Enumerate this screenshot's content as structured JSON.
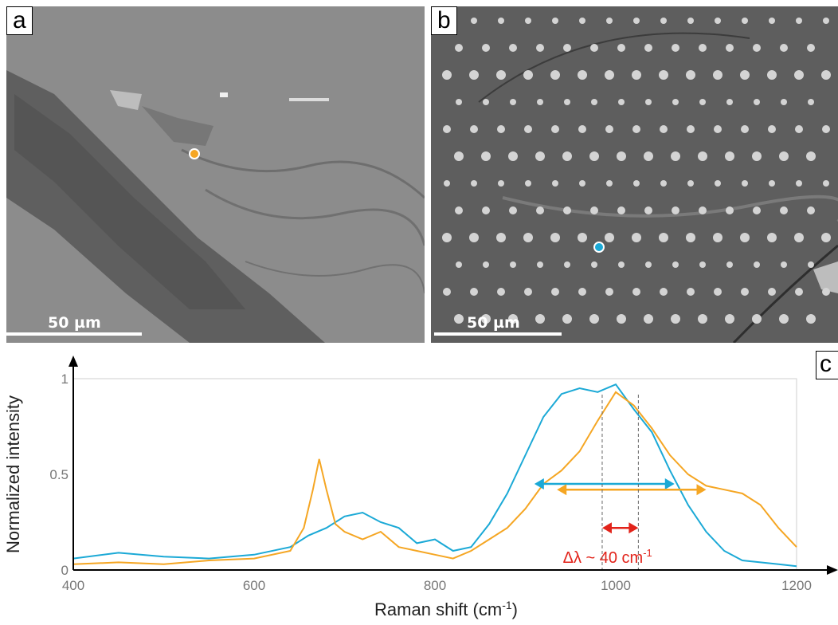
{
  "panels": {
    "a": {
      "letter": "a",
      "scale_label": "50 µm",
      "marker_color": "#F5A623"
    },
    "b": {
      "letter": "b",
      "scale_label": "50 µm",
      "marker_color": "#1BA9D6"
    },
    "c": {
      "letter": "c"
    }
  },
  "chart_data": {
    "type": "line",
    "xlabel": "Raman shift (cm-1)",
    "ylabel": "Normalized intensity",
    "xlim": [
      400,
      1200
    ],
    "ylim": [
      0,
      1
    ],
    "xticks": [
      400,
      600,
      800,
      1000,
      1200
    ],
    "yticks": [
      0,
      0.5,
      1
    ],
    "grid": false,
    "series": [
      {
        "color": "#1BA9D6",
        "x": [
          400,
          450,
          500,
          550,
          600,
          640,
          660,
          680,
          700,
          720,
          740,
          760,
          780,
          800,
          820,
          840,
          860,
          880,
          900,
          920,
          940,
          960,
          980,
          1000,
          1020,
          1040,
          1060,
          1080,
          1100,
          1120,
          1140,
          1160,
          1180,
          1200
        ],
        "y": [
          0.06,
          0.09,
          0.07,
          0.06,
          0.08,
          0.12,
          0.18,
          0.22,
          0.28,
          0.3,
          0.25,
          0.22,
          0.14,
          0.16,
          0.1,
          0.12,
          0.24,
          0.4,
          0.6,
          0.8,
          0.92,
          0.95,
          0.93,
          0.97,
          0.84,
          0.72,
          0.52,
          0.34,
          0.2,
          0.1,
          0.05,
          0.04,
          0.03,
          0.02
        ]
      },
      {
        "color": "#F5A623",
        "x": [
          400,
          450,
          500,
          550,
          600,
          640,
          655,
          665,
          672,
          680,
          690,
          700,
          720,
          740,
          760,
          780,
          800,
          820,
          840,
          860,
          880,
          900,
          920,
          940,
          960,
          980,
          1000,
          1020,
          1040,
          1060,
          1080,
          1100,
          1120,
          1140,
          1160,
          1180,
          1200
        ],
        "y": [
          0.03,
          0.04,
          0.03,
          0.05,
          0.06,
          0.1,
          0.22,
          0.42,
          0.58,
          0.42,
          0.24,
          0.2,
          0.16,
          0.2,
          0.12,
          0.1,
          0.08,
          0.06,
          0.1,
          0.16,
          0.22,
          0.32,
          0.45,
          0.52,
          0.62,
          0.78,
          0.93,
          0.86,
          0.74,
          0.6,
          0.5,
          0.44,
          0.42,
          0.4,
          0.34,
          0.22,
          0.12
        ]
      }
    ],
    "annotations": [
      {
        "kind": "fwhm-arrow",
        "color": "#1BA9D6",
        "x_start": 910,
        "x_end": 1065,
        "y": 0.45
      },
      {
        "kind": "fwhm-arrow",
        "color": "#F5A623",
        "x_start": 935,
        "x_end": 1100,
        "y": 0.42
      },
      {
        "kind": "shift-arrow",
        "color": "#E2231A",
        "x_start": 985,
        "x_end": 1025,
        "y": 0.22,
        "label": "Δλ ~ 40 cm-1"
      },
      {
        "kind": "dashed-line",
        "x": 985
      },
      {
        "kind": "dashed-line",
        "x": 1025
      }
    ]
  }
}
